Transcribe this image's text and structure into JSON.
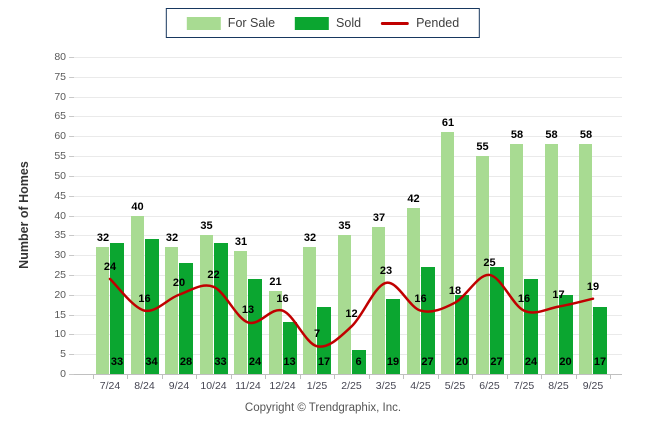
{
  "chart_data": {
    "type": "bar",
    "title": "",
    "categories": [
      "7/24",
      "8/24",
      "9/24",
      "10/24",
      "11/24",
      "12/24",
      "1/25",
      "2/25",
      "3/25",
      "4/25",
      "5/25",
      "6/25",
      "7/25",
      "8/25",
      "9/25"
    ],
    "series": [
      {
        "name": "For Sale",
        "type": "bar",
        "color": "#A8DB92",
        "values": [
          32,
          40,
          32,
          35,
          31,
          21,
          32,
          35,
          37,
          42,
          61,
          55,
          58,
          58,
          58
        ]
      },
      {
        "name": "Sold",
        "type": "bar",
        "color": "#0BA630",
        "values": [
          33,
          34,
          28,
          33,
          24,
          13,
          17,
          6,
          19,
          27,
          20,
          27,
          24,
          20,
          17
        ]
      },
      {
        "name": "Pended",
        "type": "line",
        "color": "#C00000",
        "values": [
          24,
          16,
          20,
          22,
          13,
          16,
          7,
          12,
          23,
          16,
          18,
          25,
          16,
          17,
          19
        ]
      }
    ],
    "xlabel": "",
    "ylabel": "Number of Homes",
    "ylim": [
      0,
      80
    ],
    "ytick_step": 5,
    "grid": "horizontal",
    "legend_position": "top-center",
    "footer": "Copyright © Trendgraphix, Inc."
  }
}
